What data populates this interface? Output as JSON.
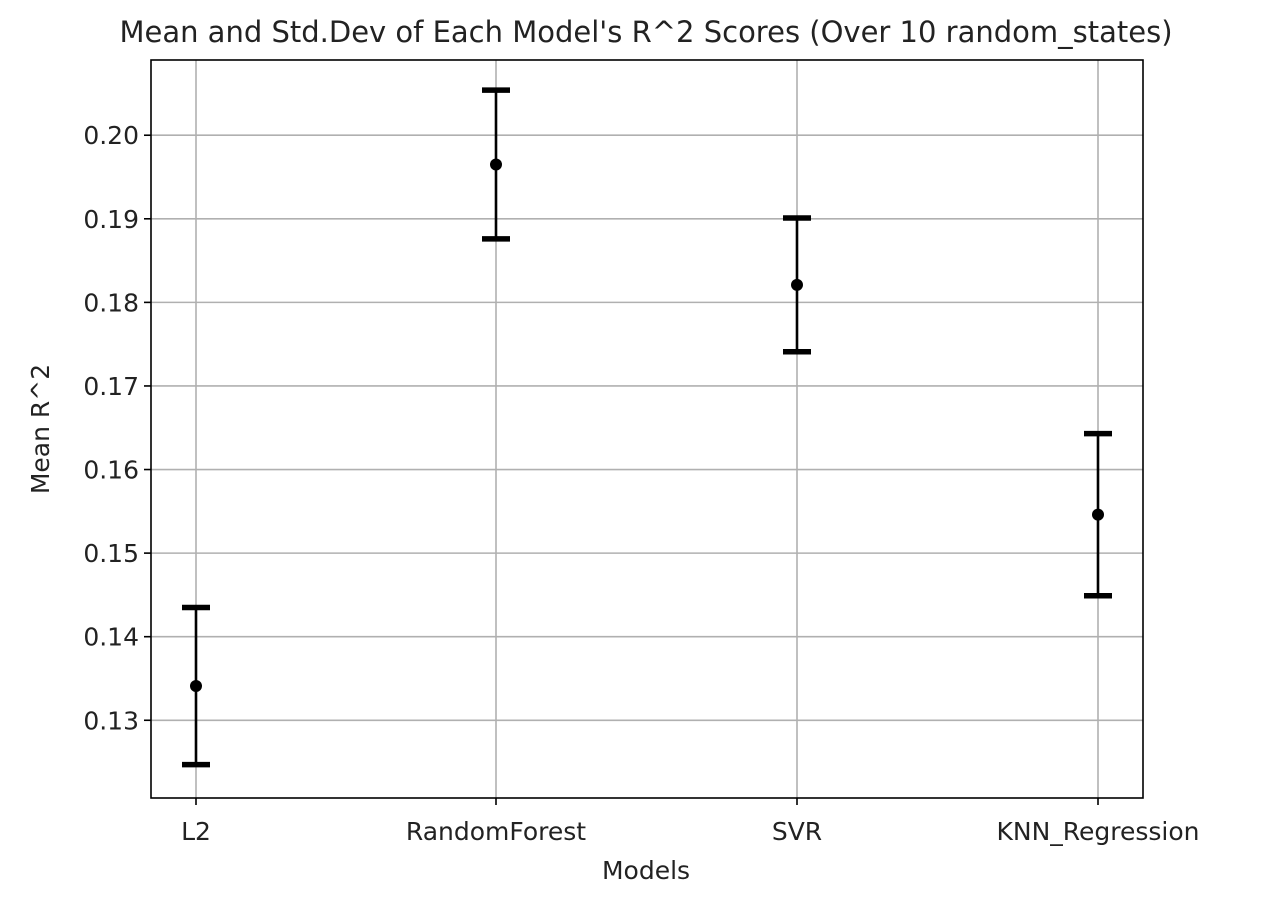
{
  "chart_data": {
    "type": "errorbar",
    "title": "Mean and Std.Dev of Each Model's R^2 Scores (Over 10 random_states)",
    "xlabel": "Models",
    "ylabel": "Mean R^2",
    "categories": [
      "L2",
      "RandomForest",
      "SVR",
      "KNN_Regression"
    ],
    "means": [
      0.1341,
      0.1965,
      0.1821,
      0.1546
    ],
    "std_devs": [
      0.0094,
      0.0089,
      0.008,
      0.0097
    ],
    "yticks": [
      0.13,
      0.14,
      0.15,
      0.16,
      0.17,
      0.18,
      0.19,
      0.2
    ],
    "ytick_labels": [
      "0.13",
      "0.14",
      "0.15",
      "0.16",
      "0.17",
      "0.18",
      "0.19",
      "0.20"
    ],
    "ylim": [
      0.1207,
      0.209
    ],
    "grid": true,
    "legend": "none",
    "marker_color": "#000000",
    "grid_color": "#b0b0b0"
  }
}
